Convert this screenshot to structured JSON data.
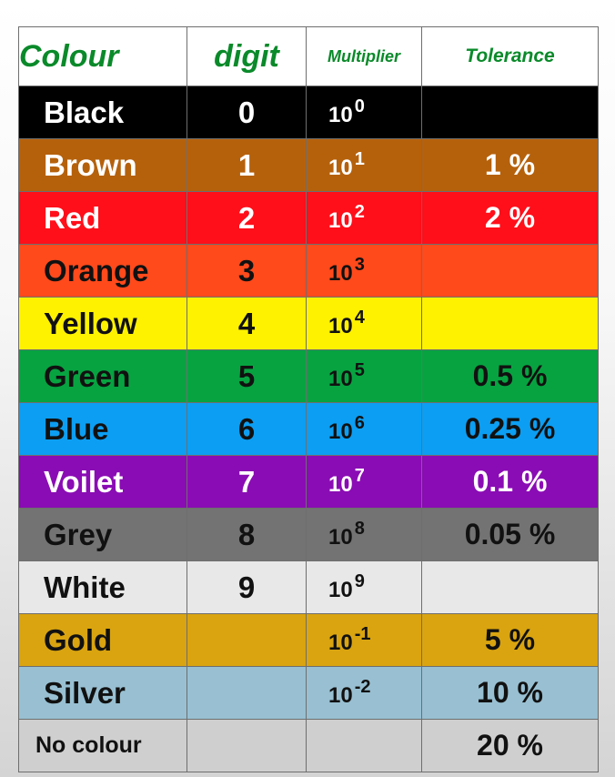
{
  "headers": {
    "colour": "Colour",
    "digit": "digit",
    "multiplier": "Multiplier",
    "tolerance": "Tolerance"
  },
  "rows": [
    {
      "colour": "Black",
      "digit": "0",
      "base": "10",
      "exp": "0",
      "tolerance": "",
      "bg": "#000000",
      "fg": "#ffffff"
    },
    {
      "colour": "Brown",
      "digit": "1",
      "base": "10",
      "exp": "1",
      "tolerance": "1 %",
      "bg": "#b5610c",
      "fg": "#ffffff"
    },
    {
      "colour": "Red",
      "digit": "2",
      "base": "10",
      "exp": "2",
      "tolerance": "2 %",
      "bg": "#ff0f1a",
      "fg": "#ffffff"
    },
    {
      "colour": "Orange",
      "digit": "3",
      "base": "10",
      "exp": "3",
      "tolerance": "",
      "bg": "#ff4a1c",
      "fg": "#111111"
    },
    {
      "colour": "Yellow",
      "digit": "4",
      "base": "10",
      "exp": "4",
      "tolerance": "",
      "bg": "#fff200",
      "fg": "#111111"
    },
    {
      "colour": "Green",
      "digit": "5",
      "base": "10",
      "exp": "5",
      "tolerance": "0.5 %",
      "bg": "#07a341",
      "fg": "#111111"
    },
    {
      "colour": "Blue",
      "digit": "6",
      "base": "10",
      "exp": "6",
      "tolerance": "0.25 %",
      "bg": "#0c9ef2",
      "fg": "#111111"
    },
    {
      "colour": "Voilet",
      "digit": "7",
      "base": "10",
      "exp": "7",
      "tolerance": "0.1 %",
      "bg": "#8a0cb4",
      "fg": "#ffffff"
    },
    {
      "colour": "Grey",
      "digit": "8",
      "base": "10",
      "exp": "8",
      "tolerance": "0.05 %",
      "bg": "#737373",
      "fg": "#111111"
    },
    {
      "colour": "White",
      "digit": "9",
      "base": "10",
      "exp": "9",
      "tolerance": "",
      "bg": "#e8e8e8",
      "fg": "#111111"
    },
    {
      "colour": "Gold",
      "digit": "",
      "base": "10",
      "exp": "-1",
      "tolerance": "5 %",
      "bg": "#d9a410",
      "fg": "#111111"
    },
    {
      "colour": "Silver",
      "digit": "",
      "base": "10",
      "exp": "-2",
      "tolerance": "10 %",
      "bg": "#98c0d2",
      "fg": "#111111"
    },
    {
      "colour": "No colour",
      "digit": "",
      "base": "",
      "exp": "",
      "tolerance": "20 %",
      "bg": "#cfcfcf",
      "fg": "#111111"
    }
  ]
}
